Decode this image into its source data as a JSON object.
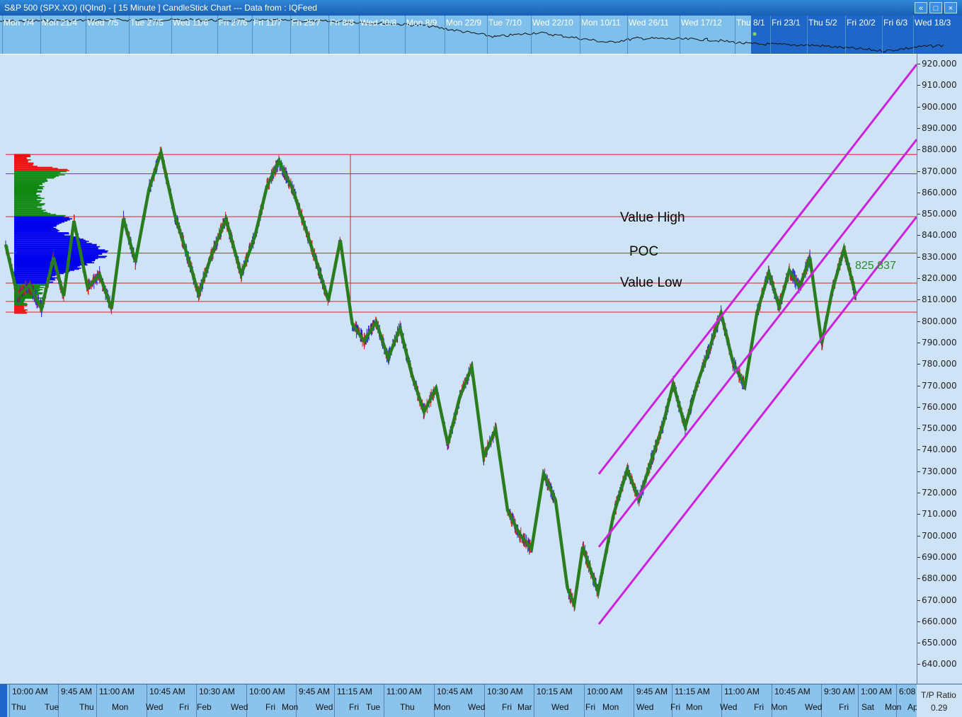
{
  "window": {
    "title": "S&P 500 (SPX.XO) (IQInd) -  [ 15 Minute ] CandleStick Chart --- Data from : IQFeed",
    "buttons": [
      "«",
      "□",
      "×"
    ]
  },
  "overview_labels": [
    "Mon 7/4",
    "Mon 21/4",
    "Wed 7/5",
    "Tue 27/5",
    "Wed 11/6",
    "Fri 27/6",
    "Fri 11/7",
    "Fri 25/7",
    "Fri 8/8",
    "Wed 20/8",
    "Mon 8/9",
    "Mon 22/9",
    "Tue 7/10",
    "Wed 22/10",
    "Mon 10/11",
    "Wed 26/11",
    "Wed 17/12",
    "Thu 8/1",
    "Fri 23/1",
    "Thu 5/2",
    "Fri 20/2",
    "Fri 6/3",
    "Wed 18/3"
  ],
  "x_time_labels": [
    "10:00 AM",
    "9:45 AM",
    "11:00 AM",
    "10:45 AM",
    "10:30 AM",
    "10:00 AM",
    "9:45 AM",
    "11:15 AM",
    "11:00 AM",
    "10:45 AM",
    "10:30 AM",
    "10:15 AM",
    "10:00 AM",
    "9:45 AM",
    "11:15 AM",
    "11:00 AM",
    "10:45 AM",
    "9:30 AM",
    "1:00 AM",
    "6:08"
  ],
  "x_day_labels": [
    "Thu",
    "Tue",
    "Thu",
    "Mon",
    "Wed",
    "Fri",
    "Feb",
    "Wed",
    "Fri",
    "Mon",
    "Wed",
    "Fri",
    "Tue",
    "Thu",
    "Mon",
    "Wed",
    "Fri",
    "Mar",
    "Wed",
    "Fri",
    "Mon",
    "Wed",
    "Fri",
    "Mon",
    "Wed",
    "Fri",
    "Mon",
    "Wed",
    "Fri",
    "Sat",
    "Mon",
    "Ap"
  ],
  "annotations": {
    "value_high": "Value High",
    "poc": "POC",
    "value_low": "Value Low",
    "last_price": "825.837"
  },
  "tp_ratio": {
    "label": "T/P Ratio",
    "value": "0.29"
  },
  "colors": {
    "zigzag": "#2a7d1e",
    "channel": "#cc22dd",
    "hlines": "#dd2222",
    "profile_value_area": "#0000ee",
    "profile_outer": "#118811",
    "profile_tail": "#ee1111",
    "bull": "#2222cc",
    "bear": "#cc2222"
  },
  "chart_data": {
    "type": "line",
    "title": "S&P 500 (SPX.XO) 15 Minute CandleStick Chart",
    "ylim": [
      632,
      924
    ],
    "y_ticks": [
      "920.000",
      "910.000",
      "900.000",
      "890.000",
      "880.000",
      "870.000",
      "860.000",
      "850.000",
      "840.000",
      "830.000",
      "820.000",
      "810.000",
      "800.000",
      "790.000",
      "780.000",
      "770.000",
      "760.000",
      "750.000",
      "740.000",
      "730.000",
      "720.000",
      "710.000",
      "700.000",
      "690.000",
      "680.000",
      "670.000",
      "660.000",
      "650.000",
      "640.000"
    ],
    "y_tick_values": [
      920,
      910,
      900,
      890,
      880,
      870,
      860,
      850,
      840,
      830,
      820,
      810,
      800,
      790,
      780,
      770,
      760,
      750,
      740,
      730,
      720,
      710,
      700,
      690,
      680,
      670,
      660,
      650,
      640
    ],
    "horizontal_levels": {
      "profile_high": 878,
      "level_869": 869,
      "value_high": 849,
      "poc": 832,
      "value_low": 818,
      "level_809": 809.5,
      "profile_low": 804.5
    },
    "zigzag_series": {
      "name": "ZigZag",
      "points": [
        [
          0,
          836
        ],
        [
          14,
          812
        ],
        [
          28,
          817
        ],
        [
          42,
          806
        ],
        [
          56,
          830
        ],
        [
          68,
          812
        ],
        [
          80,
          847
        ],
        [
          96,
          816
        ],
        [
          110,
          822
        ],
        [
          124,
          806
        ],
        [
          138,
          848
        ],
        [
          152,
          828
        ],
        [
          168,
          862
        ],
        [
          182,
          879
        ],
        [
          198,
          850
        ],
        [
          212,
          832
        ],
        [
          226,
          813
        ],
        [
          242,
          832
        ],
        [
          258,
          848
        ],
        [
          276,
          822
        ],
        [
          292,
          840
        ],
        [
          306,
          863
        ],
        [
          320,
          875
        ],
        [
          336,
          862
        ],
        [
          350,
          845
        ],
        [
          364,
          828
        ],
        [
          378,
          810
        ],
        [
          392,
          838
        ],
        [
          406,
          799
        ],
        [
          420,
          791
        ],
        [
          434,
          800
        ],
        [
          448,
          783
        ],
        [
          462,
          797
        ],
        [
          476,
          775
        ],
        [
          490,
          758
        ],
        [
          504,
          769
        ],
        [
          518,
          743
        ],
        [
          532,
          765
        ],
        [
          546,
          779
        ],
        [
          560,
          737
        ],
        [
          574,
          750
        ],
        [
          588,
          712
        ],
        [
          602,
          701
        ],
        [
          616,
          694
        ],
        [
          630,
          729
        ],
        [
          644,
          717
        ],
        [
          658,
          676
        ],
        [
          666,
          668
        ],
        [
          676,
          695
        ],
        [
          694,
          674
        ],
        [
          712,
          710
        ],
        [
          728,
          731
        ],
        [
          742,
          717
        ],
        [
          756,
          735
        ],
        [
          770,
          752
        ],
        [
          782,
          771
        ],
        [
          796,
          751
        ],
        [
          810,
          771
        ],
        [
          824,
          787
        ],
        [
          838,
          804
        ],
        [
          852,
          781
        ],
        [
          866,
          770
        ],
        [
          880,
          804
        ],
        [
          894,
          823
        ],
        [
          906,
          807
        ],
        [
          918,
          824
        ],
        [
          930,
          816
        ],
        [
          942,
          830
        ],
        [
          956,
          790
        ],
        [
          968,
          814
        ],
        [
          982,
          834
        ],
        [
          996,
          812
        ]
      ]
    },
    "channel_lines": [
      {
        "x": [
          846,
          1295
        ],
        "y": [
          729,
          920
        ]
      },
      {
        "x": [
          846,
          1295
        ],
        "y": [
          695,
          885
        ]
      },
      {
        "x": [
          846,
          1295
        ],
        "y": [
          659,
          849
        ]
      }
    ],
    "volume_profile": {
      "price_range": [
        804,
        878
      ],
      "value_area": [
        818,
        849
      ]
    }
  }
}
